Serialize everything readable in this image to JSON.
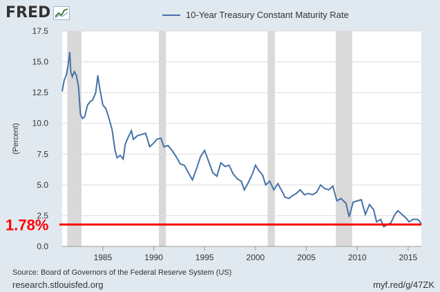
{
  "header": {
    "logo_text": "FRED",
    "logo_icon": "fred-chart-icon",
    "legend_label": "10-Year Treasury Constant Maturity Rate"
  },
  "footer": {
    "source": "Source: Board of Governors of the Federal Reserve System (US)",
    "site": "research.stlouisfed.org",
    "short_url": "myf.red/g/47ZK"
  },
  "colors": {
    "series": "#4572a7",
    "recession": "#d9d9d9",
    "reference": "#ff0000",
    "plot_bg": "#ffffff",
    "frame_bg": "#e1e9f0"
  },
  "chart_data": {
    "type": "line",
    "title": "10-Year Treasury Constant Maturity Rate",
    "ylabel": "(Percent)",
    "xlabel": "",
    "xlim": [
      1981.0,
      2016.3
    ],
    "ylim": [
      0,
      17.5
    ],
    "yticks": [
      0.0,
      2.5,
      5.0,
      7.5,
      10.0,
      12.5,
      15.0,
      17.5
    ],
    "ytick_labels": [
      "0.0",
      "2.5",
      "5.0",
      "7.5",
      "10.0",
      "12.5",
      "15.0",
      "17.5"
    ],
    "xticks": [
      1985,
      1990,
      1995,
      2000,
      2005,
      2010,
      2015
    ],
    "xtick_labels": [
      "1985",
      "1990",
      "1995",
      "2000",
      "2005",
      "2010",
      "2015"
    ],
    "recessions": [
      [
        1981.5,
        1982.9
      ],
      [
        1990.5,
        1991.2
      ],
      [
        2001.2,
        2001.9
      ],
      [
        2007.9,
        2009.5
      ]
    ],
    "reference_line": {
      "value": 1.78,
      "label": "1.78%"
    },
    "series": [
      {
        "name": "10-Year Treasury Constant Maturity Rate",
        "x": [
          1981.0,
          1981.2,
          1981.4,
          1981.6,
          1981.75,
          1981.85,
          1982.0,
          1982.2,
          1982.4,
          1982.6,
          1982.8,
          1983.0,
          1983.2,
          1983.5,
          1983.8,
          1984.0,
          1984.3,
          1984.5,
          1984.7,
          1985.0,
          1985.3,
          1985.6,
          1985.9,
          1986.2,
          1986.4,
          1986.7,
          1987.0,
          1987.2,
          1987.5,
          1987.8,
          1988.0,
          1988.4,
          1988.8,
          1989.2,
          1989.6,
          1990.0,
          1990.3,
          1990.7,
          1991.0,
          1991.4,
          1991.8,
          1992.2,
          1992.6,
          1993.0,
          1993.4,
          1993.8,
          1994.2,
          1994.6,
          1995.0,
          1995.4,
          1995.8,
          1996.2,
          1996.6,
          1997.0,
          1997.4,
          1997.8,
          1998.2,
          1998.6,
          1998.9,
          1999.3,
          1999.7,
          2000.0,
          2000.3,
          2000.7,
          2001.0,
          2001.4,
          2001.8,
          2002.2,
          2002.6,
          2002.9,
          2003.3,
          2003.6,
          2004.0,
          2004.4,
          2004.8,
          2005.2,
          2005.6,
          2006.0,
          2006.4,
          2006.8,
          2007.2,
          2007.6,
          2008.0,
          2008.4,
          2008.9,
          2009.2,
          2009.6,
          2010.0,
          2010.4,
          2010.8,
          2011.2,
          2011.6,
          2011.9,
          2012.3,
          2012.6,
          2013.0,
          2013.3,
          2013.7,
          2014.0,
          2014.4,
          2014.8,
          2015.1,
          2015.5,
          2015.9,
          2016.1,
          2016.3
        ],
        "values": [
          12.6,
          13.5,
          13.9,
          14.8,
          15.8,
          14.2,
          13.8,
          14.2,
          13.9,
          13.0,
          10.7,
          10.4,
          10.5,
          11.5,
          11.8,
          11.9,
          12.5,
          13.9,
          12.8,
          11.5,
          11.2,
          10.4,
          9.5,
          7.8,
          7.2,
          7.4,
          7.1,
          8.3,
          8.9,
          9.4,
          8.7,
          9.0,
          9.1,
          9.2,
          8.1,
          8.4,
          8.7,
          8.8,
          8.1,
          8.2,
          7.8,
          7.3,
          6.7,
          6.6,
          6.0,
          5.4,
          6.3,
          7.3,
          7.8,
          6.9,
          6.0,
          5.7,
          6.8,
          6.5,
          6.6,
          5.9,
          5.5,
          5.3,
          4.6,
          5.2,
          5.9,
          6.6,
          6.2,
          5.8,
          5.0,
          5.3,
          4.6,
          5.1,
          4.5,
          4.0,
          3.9,
          4.1,
          4.3,
          4.6,
          4.2,
          4.3,
          4.2,
          4.4,
          5.0,
          4.7,
          4.6,
          4.9,
          3.7,
          3.9,
          3.5,
          2.4,
          3.6,
          3.7,
          3.8,
          2.6,
          3.4,
          3.0,
          2.0,
          2.2,
          1.6,
          1.8,
          1.9,
          2.6,
          2.9,
          2.6,
          2.3,
          2.0,
          2.2,
          2.2,
          2.1,
          1.78
        ]
      }
    ]
  }
}
